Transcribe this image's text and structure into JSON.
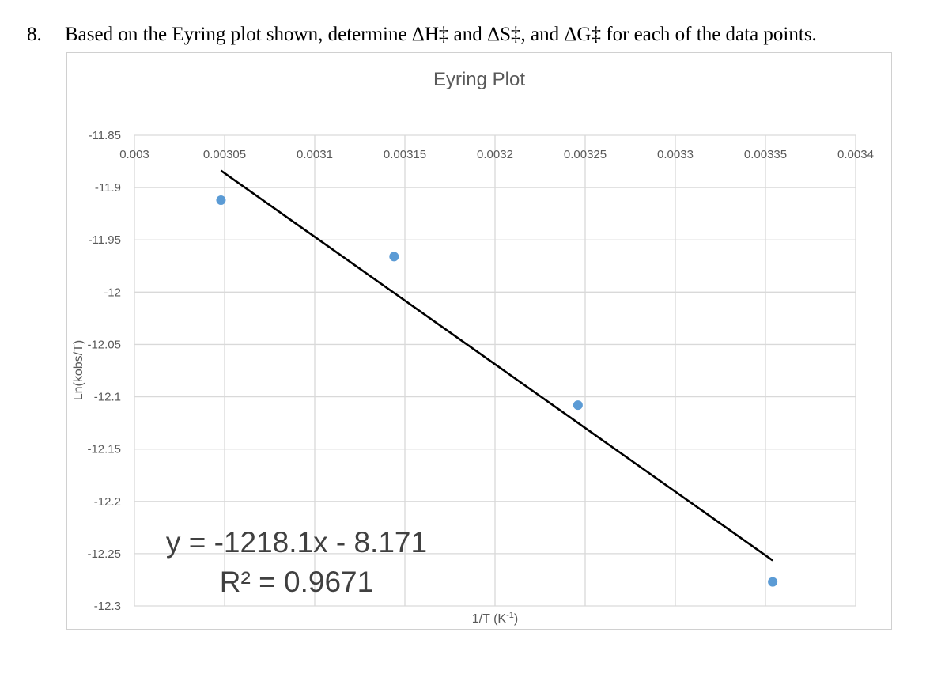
{
  "question": {
    "number": "8.",
    "text": "Based on the Eyring plot shown, determine ΔH‡ and ΔS‡, and ΔG‡ for each of the data points."
  },
  "chart_data": {
    "type": "scatter",
    "title": "Eyring Plot",
    "xlabel": "1/T (K",
    "xlabel_sup": "-1",
    "xlabel_end": ")",
    "ylabel": "Ln(kobs/T)",
    "xlim": [
      0.003,
      0.0034
    ],
    "ylim": [
      -12.3,
      -11.85
    ],
    "x_ticks": [
      "0.003",
      "0.00305",
      "0.0031",
      "0.00315",
      "0.0032",
      "0.00325",
      "0.0033",
      "0.00335",
      "0.0034"
    ],
    "x_tick_values": [
      0.003,
      0.00305,
      0.0031,
      0.00315,
      0.0032,
      0.00325,
      0.0033,
      0.00335,
      0.0034
    ],
    "y_ticks": [
      "-11.85",
      "-11.9",
      "-11.95",
      "-12",
      "-12.05",
      "-12.1",
      "-12.15",
      "-12.2",
      "-12.25",
      "-12.3"
    ],
    "y_tick_values": [
      -11.85,
      -11.9,
      -11.95,
      -12,
      -12.05,
      -12.1,
      -12.15,
      -12.2,
      -12.25,
      -12.3
    ],
    "x_axis_position": "top",
    "grid": true,
    "points": [
      {
        "x": 0.003048,
        "y": -11.912
      },
      {
        "x": 0.003144,
        "y": -11.966
      },
      {
        "x": 0.003246,
        "y": -12.108
      },
      {
        "x": 0.003354,
        "y": -12.277
      }
    ],
    "trendline": {
      "slope": -1218.1,
      "intercept": -8.171,
      "x_start": 0.003048,
      "x_end": 0.003354,
      "equation": "y = -1218.1x - 8.171",
      "r2": "R² = 0.9671"
    },
    "colors": {
      "point": "#5b9bd5",
      "trendline": "#000000",
      "grid": "#d9d9d9",
      "text": "#595959"
    }
  }
}
